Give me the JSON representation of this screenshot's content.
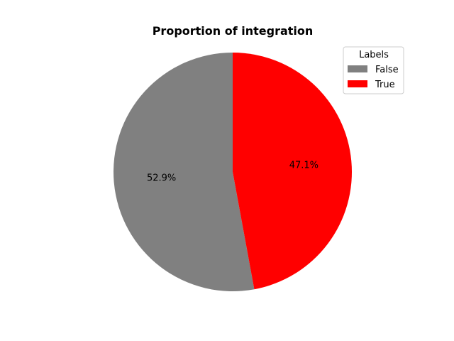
{
  "chart_data": {
    "type": "pie",
    "title": "Proportion of integration",
    "categories": [
      "False",
      "True"
    ],
    "values": [
      52.9,
      47.1
    ],
    "labels": [
      "52.9%",
      "47.1%"
    ],
    "colors": [
      "#808080",
      "#ff0000"
    ],
    "start_angle_deg": 90,
    "direction": "counterclockwise",
    "legend": {
      "title": "Labels",
      "position": "top-right",
      "entries": [
        "False",
        "True"
      ]
    }
  }
}
